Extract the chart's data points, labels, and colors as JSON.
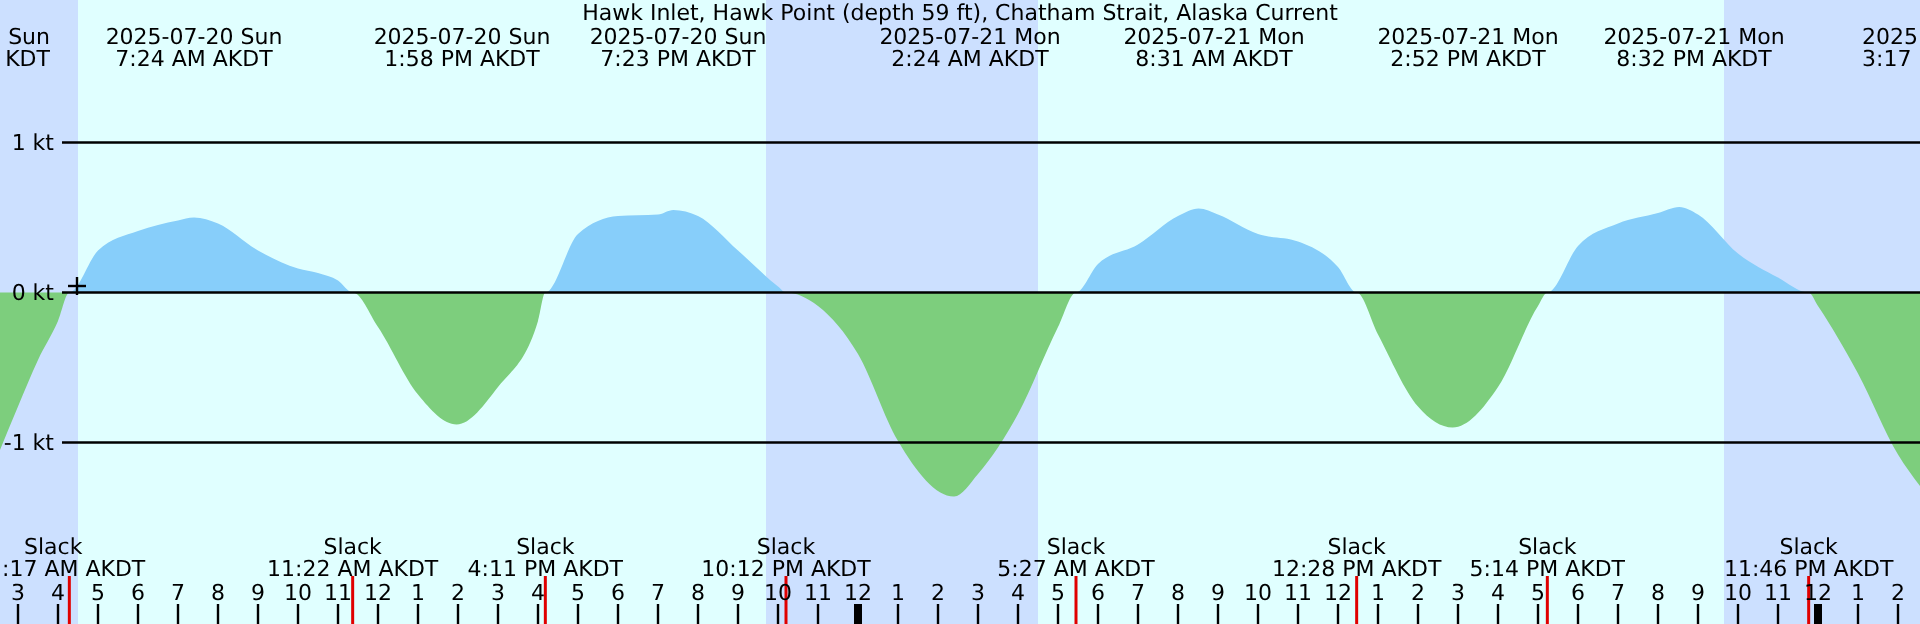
{
  "chart_data": {
    "type": "area",
    "title": "Hawk Inlet, Hawk Point (depth 59 ft), Chatham Strait, Alaska Current",
    "x": [
      "2025-07-20T02:33",
      "2025-07-20T03:00",
      "2025-07-20T03:30",
      "2025-07-20T04:00",
      "2025-07-20T04:17",
      "2025-07-20T05:00",
      "2025-07-20T06:00",
      "2025-07-20T07:00",
      "2025-07-20T07:24",
      "2025-07-20T08:00",
      "2025-07-20T09:00",
      "2025-07-20T10:00",
      "2025-07-20T10:30",
      "2025-07-20T11:00",
      "2025-07-20T11:22",
      "2025-07-20T12:00",
      "2025-07-20T13:00",
      "2025-07-20T13:58",
      "2025-07-20T15:00",
      "2025-07-20T16:00",
      "2025-07-20T16:11",
      "2025-07-20T17:00",
      "2025-07-20T18:00",
      "2025-07-20T19:00",
      "2025-07-20T19:23",
      "2025-07-20T20:00",
      "2025-07-20T21:00",
      "2025-07-20T22:00",
      "2025-07-20T22:12",
      "2025-07-20T23:00",
      "2025-07-21T00:00",
      "2025-07-21T01:00",
      "2025-07-21T02:24",
      "2025-07-21T03:00",
      "2025-07-21T04:00",
      "2025-07-21T05:00",
      "2025-07-21T05:27",
      "2025-07-21T06:00",
      "2025-07-21T07:00",
      "2025-07-21T08:00",
      "2025-07-21T08:31",
      "2025-07-21T09:00",
      "2025-07-21T10:00",
      "2025-07-21T11:00",
      "2025-07-21T12:00",
      "2025-07-21T12:28",
      "2025-07-21T13:00",
      "2025-07-21T14:00",
      "2025-07-21T14:52",
      "2025-07-21T16:00",
      "2025-07-21T17:00",
      "2025-07-21T17:14",
      "2025-07-21T18:00",
      "2025-07-21T19:00",
      "2025-07-21T20:00",
      "2025-07-21T20:32",
      "2025-07-21T21:00",
      "2025-07-21T22:00",
      "2025-07-21T23:00",
      "2025-07-21T23:46",
      "2025-07-22T00:00",
      "2025-07-22T01:00",
      "2025-07-22T02:00",
      "2025-07-22T02:33"
    ],
    "series": [
      {
        "color": "#87cefa",
        "values": [
          0,
          0,
          0,
          0,
          0,
          0.28,
          0.41,
          0.48,
          0.5,
          0.46,
          0.28,
          0.16,
          0.13,
          0.08,
          0,
          0,
          0,
          0,
          0,
          0,
          0,
          0.39,
          0.51,
          0.52,
          0.55,
          0.51,
          0.28,
          0.04,
          0,
          0,
          0,
          0,
          0,
          0,
          0,
          0,
          0,
          0.19,
          0.32,
          0.51,
          0.56,
          0.52,
          0.39,
          0.34,
          0.17,
          0,
          0,
          0,
          0,
          0,
          0,
          0,
          0.31,
          0.46,
          0.53,
          0.57,
          0.52,
          0.26,
          0.1,
          0,
          0,
          0,
          0,
          0
        ]
      },
      {
        "color": "#7dce7d",
        "values": [
          -1.05,
          -0.76,
          -0.45,
          -0.19,
          0,
          0,
          0,
          0,
          0,
          0,
          0,
          0,
          0,
          0,
          0,
          -0.23,
          -0.68,
          -0.88,
          -0.63,
          -0.19,
          0,
          0,
          0,
          0,
          0,
          0,
          0,
          0,
          0,
          -0.09,
          -0.41,
          -0.99,
          -1.36,
          -1.21,
          -0.81,
          -0.23,
          0,
          0,
          0,
          0,
          0,
          0,
          0,
          0,
          0,
          0,
          -0.28,
          -0.76,
          -0.9,
          -0.63,
          -0.09,
          0,
          0,
          0,
          0,
          0,
          0,
          0,
          0,
          0,
          -0.09,
          -0.54,
          -1.08,
          -1.29
        ]
      }
    ],
    "xlim": [
      "2025-07-20T02:33",
      "2025-07-22T02:33"
    ],
    "xticks": [
      {
        "value": "2025-07-20T03:00",
        "label": "3"
      },
      {
        "value": "2025-07-20T04:00",
        "label": "4"
      },
      {
        "value": "2025-07-20T05:00",
        "label": "5"
      },
      {
        "value": "2025-07-20T06:00",
        "label": "6"
      },
      {
        "value": "2025-07-20T07:00",
        "label": "7"
      },
      {
        "value": "2025-07-20T08:00",
        "label": "8"
      },
      {
        "value": "2025-07-20T09:00",
        "label": "9"
      },
      {
        "value": "2025-07-20T10:00",
        "label": "10"
      },
      {
        "value": "2025-07-20T11:00",
        "label": "11"
      },
      {
        "value": "2025-07-20T12:00",
        "label": "12"
      },
      {
        "value": "2025-07-20T13:00",
        "label": "1"
      },
      {
        "value": "2025-07-20T14:00",
        "label": "2"
      },
      {
        "value": "2025-07-20T15:00",
        "label": "3"
      },
      {
        "value": "2025-07-20T16:00",
        "label": "4"
      },
      {
        "value": "2025-07-20T17:00",
        "label": "5"
      },
      {
        "value": "2025-07-20T18:00",
        "label": "6"
      },
      {
        "value": "2025-07-20T19:00",
        "label": "7"
      },
      {
        "value": "2025-07-20T20:00",
        "label": "8"
      },
      {
        "value": "2025-07-20T21:00",
        "label": "9"
      },
      {
        "value": "2025-07-20T22:00",
        "label": "10"
      },
      {
        "value": "2025-07-20T23:00",
        "label": "11"
      },
      {
        "value": "2025-07-21T00:00",
        "label": "12"
      },
      {
        "value": "2025-07-21T01:00",
        "label": "1"
      },
      {
        "value": "2025-07-21T02:00",
        "label": "2"
      },
      {
        "value": "2025-07-21T03:00",
        "label": "3"
      },
      {
        "value": "2025-07-21T04:00",
        "label": "4"
      },
      {
        "value": "2025-07-21T05:00",
        "label": "5"
      },
      {
        "value": "2025-07-21T06:00",
        "label": "6"
      },
      {
        "value": "2025-07-21T07:00",
        "label": "7"
      },
      {
        "value": "2025-07-21T08:00",
        "label": "8"
      },
      {
        "value": "2025-07-21T09:00",
        "label": "9"
      },
      {
        "value": "2025-07-21T10:00",
        "label": "10"
      },
      {
        "value": "2025-07-21T11:00",
        "label": "11"
      },
      {
        "value": "2025-07-21T12:00",
        "label": "12"
      },
      {
        "value": "2025-07-21T13:00",
        "label": "1"
      },
      {
        "value": "2025-07-21T14:00",
        "label": "2"
      },
      {
        "value": "2025-07-21T15:00",
        "label": "3"
      },
      {
        "value": "2025-07-21T16:00",
        "label": "4"
      },
      {
        "value": "2025-07-21T17:00",
        "label": "5"
      },
      {
        "value": "2025-07-21T18:00",
        "label": "6"
      },
      {
        "value": "2025-07-21T19:00",
        "label": "7"
      },
      {
        "value": "2025-07-21T20:00",
        "label": "8"
      },
      {
        "value": "2025-07-21T21:00",
        "label": "9"
      },
      {
        "value": "2025-07-21T22:00",
        "label": "10"
      },
      {
        "value": "2025-07-21T23:00",
        "label": "11"
      },
      {
        "value": "2025-07-22T00:00",
        "label": "12"
      },
      {
        "value": "2025-07-22T01:00",
        "label": "1"
      },
      {
        "value": "2025-07-22T02:00",
        "label": "2"
      }
    ],
    "ylim": [
      -2.21,
      1.95
    ],
    "yticks": [
      {
        "value": -1,
        "label": "-1 kt"
      },
      {
        "value": 0,
        "label": "0 kt"
      },
      {
        "value": 1,
        "label": "1 kt"
      }
    ],
    "grid": "y",
    "bands": [
      {
        "axis": "x",
        "from": "2025-07-20T02:33",
        "to": "2025-07-20T04:30",
        "color": "#cce0ff"
      },
      {
        "axis": "x",
        "from": "2025-07-20T21:42",
        "to": "2025-07-21T04:30",
        "color": "#cce0ff"
      },
      {
        "axis": "x",
        "from": "2025-07-21T21:39",
        "to": "2025-07-22T02:33",
        "color": "#cce0ff"
      }
    ],
    "ref_lines": [
      {
        "axis": "x",
        "value": "2025-07-20T04:17",
        "label": "Slack\n:17 AM AKDT",
        "color": "#e00000"
      },
      {
        "axis": "x",
        "value": "2025-07-20T11:22",
        "label": "Slack\n11:22 AM AKDT",
        "color": "#e00000"
      },
      {
        "axis": "x",
        "value": "2025-07-20T16:11",
        "label": "Slack\n4:11 PM AKDT",
        "color": "#e00000"
      },
      {
        "axis": "x",
        "value": "2025-07-20T22:12",
        "label": "Slack\n10:12 PM AKDT",
        "color": "#e00000"
      },
      {
        "axis": "x",
        "value": "2025-07-21T05:27",
        "label": "Slack\n5:27 AM AKDT",
        "color": "#e00000"
      },
      {
        "axis": "x",
        "value": "2025-07-21T12:28",
        "label": "Slack\n12:28 PM AKDT",
        "color": "#e00000"
      },
      {
        "axis": "x",
        "value": "2025-07-21T17:14",
        "label": "Slack\n5:14 PM AKDT",
        "color": "#e00000"
      },
      {
        "axis": "x",
        "value": "2025-07-21T23:46",
        "label": "Slack\n11:46 PM AKDT",
        "color": "#e00000"
      }
    ],
    "annotations": [
      "Sun\nKDT",
      "2025-07-20 Sun\n7:24 AM AKDT",
      "2025-07-20 Sun\n1:58 PM AKDT",
      "2025-07-20 Sun\n7:23 PM AKDT",
      "2025-07-21 Mon\n2:24 AM AKDT",
      "2025-07-21 Mon\n8:31 AM AKDT",
      "2025-07-21 Mon\n2:52 PM AKDT",
      "2025-07-21 Mon\n8:32 PM AKDT",
      "2025\n3:17"
    ]
  }
}
